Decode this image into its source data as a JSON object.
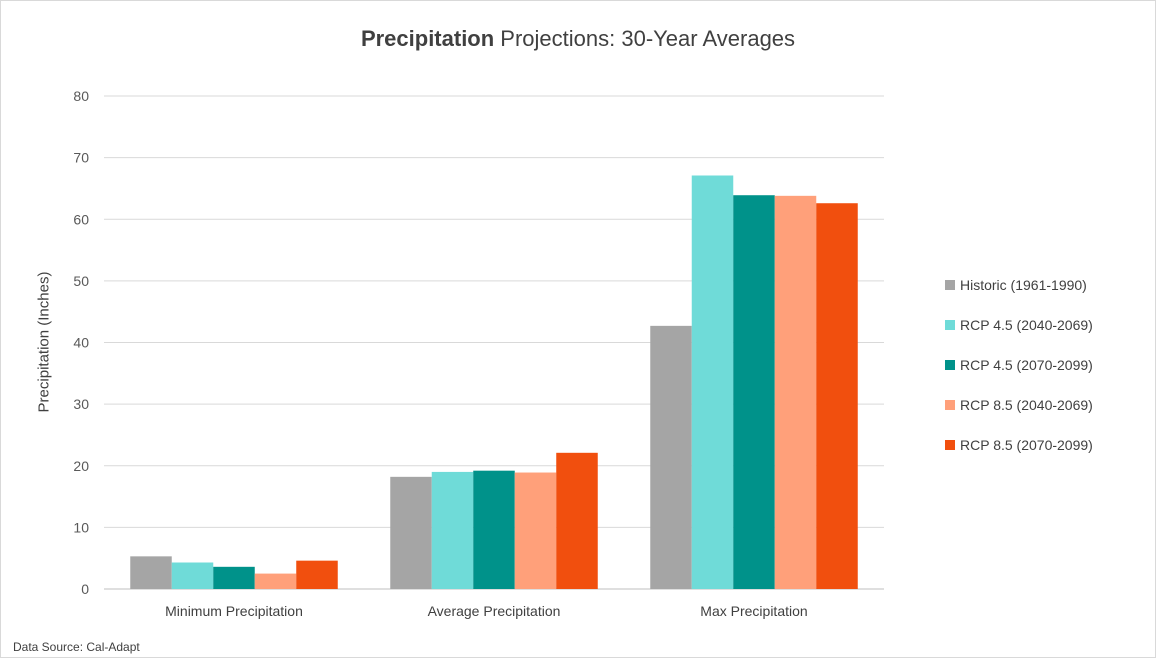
{
  "chart_data": {
    "type": "bar",
    "title_bold": "Precipitation",
    "title_rest": " Projections: 30-Year Averages",
    "ylabel": "Precipitation (Inches)",
    "xlabel": "",
    "ylim": [
      0,
      80
    ],
    "yticks": [
      0,
      10,
      20,
      30,
      40,
      50,
      60,
      70,
      80
    ],
    "grid": true,
    "legend_position": "right",
    "categories": [
      "Minimum Precipitation",
      "Average Precipitation",
      "Max Precipitation"
    ],
    "series": [
      {
        "name": "Historic (1961-1990)",
        "color": "#a5a5a5",
        "values": [
          5.3,
          18.2,
          42.7
        ]
      },
      {
        "name": "RCP 4.5 (2040-2069)",
        "color": "#6fdbd8",
        "values": [
          4.3,
          19.0,
          67.1
        ]
      },
      {
        "name": "RCP 4.5 (2070-2099)",
        "color": "#00928a",
        "values": [
          3.6,
          19.2,
          63.9
        ]
      },
      {
        "name": "RCP 8.5 (2040-2069)",
        "color": "#ffa07a",
        "values": [
          2.5,
          18.9,
          63.8
        ]
      },
      {
        "name": "RCP 8.5 (2070-2099)",
        "color": "#f14f0e",
        "values": [
          4.6,
          22.1,
          62.6
        ]
      }
    ]
  },
  "footer": {
    "source": "Data Source: Cal-Adapt"
  }
}
